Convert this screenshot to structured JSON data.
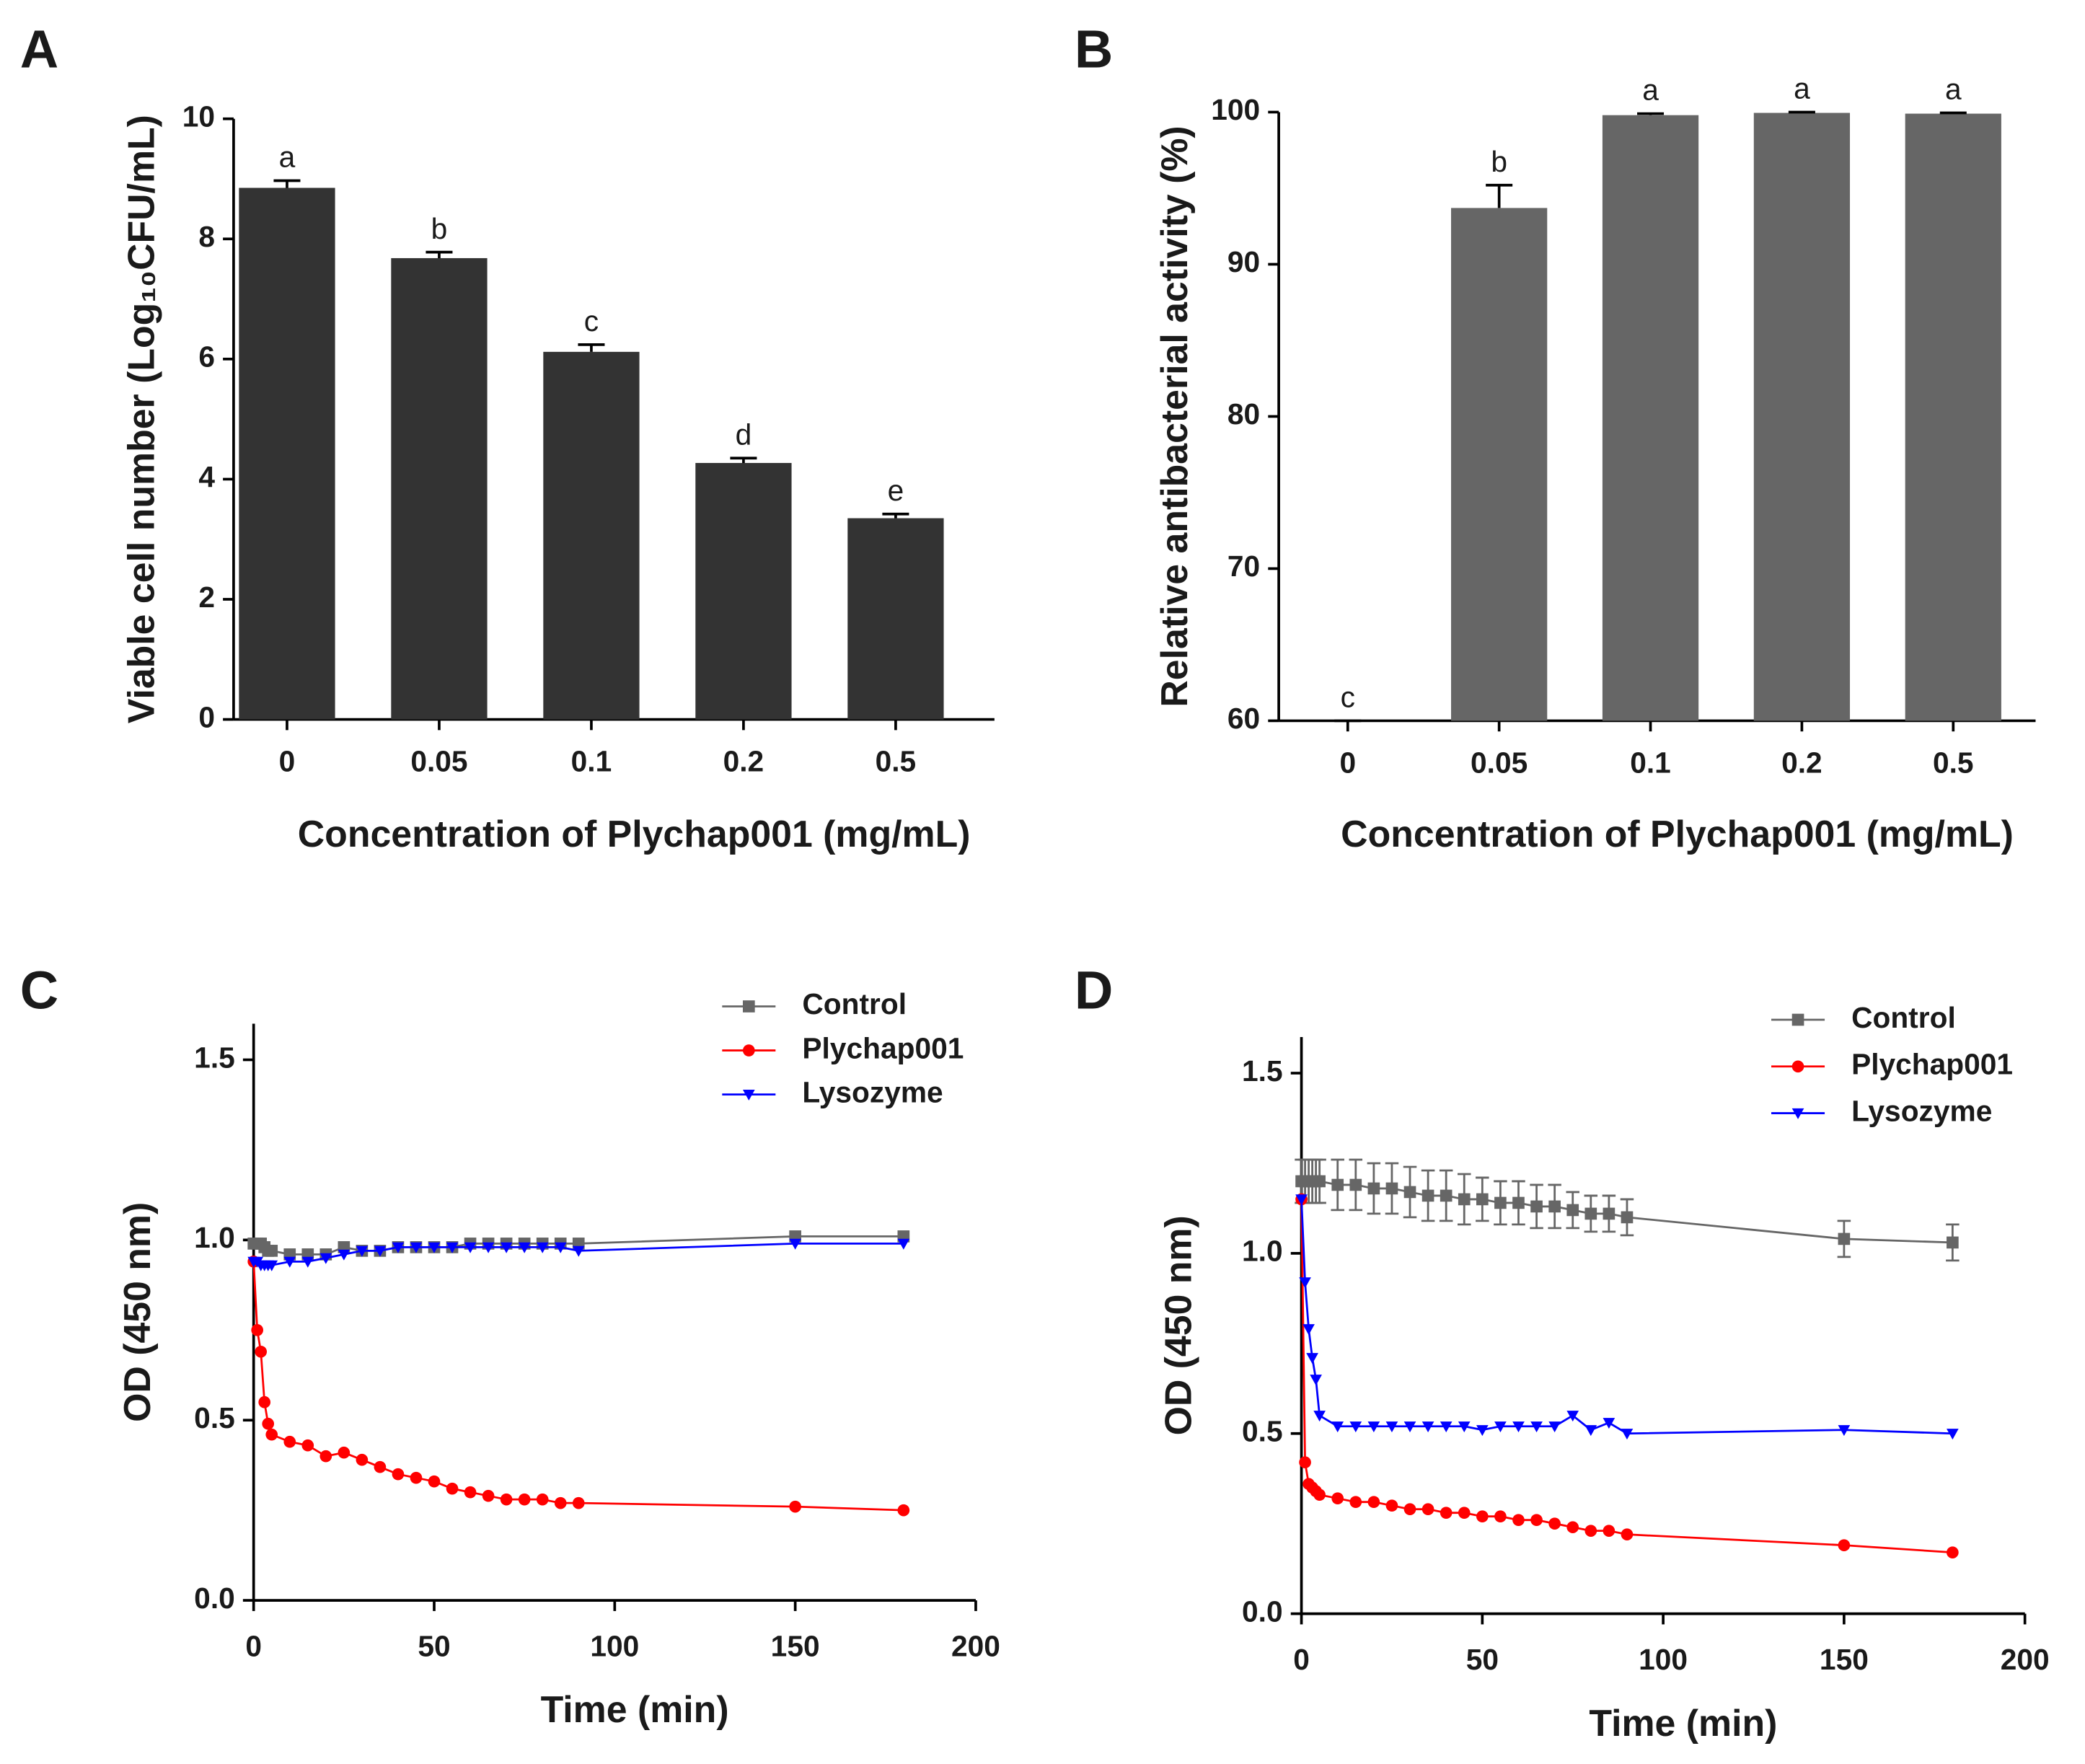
{
  "chart_data": [
    {
      "type": "bar",
      "panel": "A",
      "xlabel": "Concentration of Plychap001 (mg/mL)",
      "ylabel": "Viable cell number (Log₁₀CFU/mL)",
      "categories": [
        "0",
        "0.05",
        "0.1",
        "0.2",
        "0.5"
      ],
      "values": [
        8.85,
        7.68,
        6.12,
        4.27,
        3.35
      ],
      "errors": [
        0.12,
        0.1,
        0.12,
        0.08,
        0.07
      ],
      "annotations": [
        "a",
        "b",
        "c",
        "d",
        "e"
      ],
      "color": "#333333",
      "ylim": [
        0,
        10
      ],
      "yticks": [
        0,
        2,
        4,
        6,
        8,
        10
      ]
    },
    {
      "type": "bar",
      "panel": "B",
      "xlabel": "Concentration of Plychap001 (mg/mL)",
      "ylabel": "Relative antibacterial activity (%)",
      "categories": [
        "0",
        "0.05",
        "0.1",
        "0.2",
        "0.5"
      ],
      "values": [
        60,
        93.7,
        99.8,
        99.95,
        99.9
      ],
      "errors": [
        0,
        1.5,
        0.1,
        0.05,
        0.05
      ],
      "annotations": [
        "c",
        "b",
        "a",
        "a",
        "a"
      ],
      "color": "#666666",
      "ylim": [
        60,
        100
      ],
      "yticks": [
        60,
        70,
        80,
        90,
        100
      ]
    },
    {
      "type": "line",
      "panel": "C",
      "xlabel": "Time (min)",
      "ylabel": "OD (450 nm)",
      "x": [
        0,
        1,
        2,
        3,
        4,
        5,
        10,
        15,
        20,
        25,
        30,
        35,
        40,
        45,
        50,
        55,
        60,
        65,
        70,
        75,
        80,
        85,
        90,
        150,
        180
      ],
      "series": [
        {
          "name": "Control",
          "color": "#666666",
          "marker": "square",
          "values": [
            0.99,
            0.99,
            0.99,
            0.98,
            0.97,
            0.97,
            0.96,
            0.96,
            0.96,
            0.98,
            0.97,
            0.97,
            0.98,
            0.98,
            0.98,
            0.98,
            0.99,
            0.99,
            0.99,
            0.99,
            0.99,
            0.99,
            0.99,
            1.01,
            1.01
          ]
        },
        {
          "name": "Plychap001",
          "color": "#ff0000",
          "marker": "circle",
          "values": [
            0.94,
            0.75,
            0.69,
            0.55,
            0.49,
            0.46,
            0.44,
            0.43,
            0.4,
            0.41,
            0.39,
            0.37,
            0.35,
            0.34,
            0.33,
            0.31,
            0.3,
            0.29,
            0.28,
            0.28,
            0.28,
            0.27,
            0.27,
            0.26,
            0.25
          ]
        },
        {
          "name": "Lysozyme",
          "color": "#0000ff",
          "marker": "triangle-down",
          "values": [
            0.94,
            0.94,
            0.93,
            0.93,
            0.93,
            0.93,
            0.94,
            0.94,
            0.95,
            0.96,
            0.97,
            0.97,
            0.98,
            0.98,
            0.98,
            0.98,
            0.98,
            0.98,
            0.98,
            0.98,
            0.98,
            0.98,
            0.97,
            0.99,
            0.99
          ]
        }
      ],
      "xlim": [
        0,
        200
      ],
      "xticks": [
        0,
        50,
        100,
        150,
        200
      ],
      "ylim": [
        0,
        1.6
      ],
      "yticks": [
        {
          "value": 0,
          "label": "0.0"
        },
        {
          "value": 0.5,
          "label": "0.5"
        },
        {
          "value": 1,
          "label": "1.0"
        },
        {
          "value": 1.5,
          "label": "1.5"
        }
      ],
      "legend": "top-right"
    },
    {
      "type": "line",
      "panel": "D",
      "xlabel": "Time (min)",
      "ylabel": "OD (450 nm)",
      "x": [
        0,
        1,
        2,
        3,
        4,
        5,
        10,
        15,
        20,
        25,
        30,
        35,
        40,
        45,
        50,
        55,
        60,
        65,
        70,
        75,
        80,
        85,
        90,
        150,
        180
      ],
      "series": [
        {
          "name": "Control",
          "color": "#666666",
          "marker": "square",
          "values": [
            1.2,
            1.2,
            1.2,
            1.2,
            1.2,
            1.2,
            1.19,
            1.19,
            1.18,
            1.18,
            1.17,
            1.16,
            1.16,
            1.15,
            1.15,
            1.14,
            1.14,
            1.13,
            1.13,
            1.12,
            1.11,
            1.11,
            1.1,
            1.04,
            1.03
          ],
          "errors": [
            0.06,
            0.06,
            0.06,
            0.06,
            0.06,
            0.06,
            0.07,
            0.07,
            0.07,
            0.07,
            0.07,
            0.07,
            0.07,
            0.07,
            0.06,
            0.06,
            0.06,
            0.06,
            0.06,
            0.05,
            0.05,
            0.05,
            0.05,
            0.05,
            0.05
          ]
        },
        {
          "name": "Plychap001",
          "color": "#ff0000",
          "marker": "circle",
          "values": [
            1.15,
            0.42,
            0.36,
            0.35,
            0.34,
            0.33,
            0.32,
            0.31,
            0.31,
            0.3,
            0.29,
            0.29,
            0.28,
            0.28,
            0.27,
            0.27,
            0.26,
            0.26,
            0.25,
            0.24,
            0.23,
            0.23,
            0.22,
            0.19,
            0.17
          ]
        },
        {
          "name": "Lysozyme",
          "color": "#0000ff",
          "marker": "triangle-down",
          "values": [
            1.15,
            0.92,
            0.79,
            0.71,
            0.65,
            0.55,
            0.52,
            0.52,
            0.52,
            0.52,
            0.52,
            0.52,
            0.52,
            0.52,
            0.51,
            0.52,
            0.52,
            0.52,
            0.52,
            0.55,
            0.51,
            0.53,
            0.5,
            0.51,
            0.5
          ]
        }
      ],
      "xlim": [
        0,
        200
      ],
      "xticks": [
        0,
        50,
        100,
        150,
        200
      ],
      "ylim": [
        0,
        1.6
      ],
      "yticks": [
        {
          "value": 0,
          "label": "0.0"
        },
        {
          "value": 0.5,
          "label": "0.5"
        },
        {
          "value": 1,
          "label": "1.0"
        },
        {
          "value": 1.5,
          "label": "1.5"
        }
      ],
      "legend": "top-right"
    }
  ]
}
